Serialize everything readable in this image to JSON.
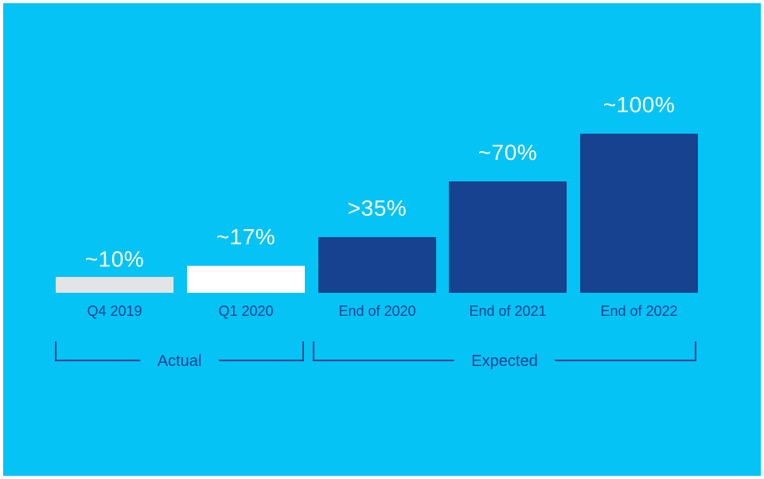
{
  "chart_data": {
    "type": "bar",
    "title": "",
    "xlabel": "",
    "ylabel": "",
    "categories": [
      "Q4 2019",
      "Q1 2020",
      "End of 2020",
      "End of 2021",
      "End of 2022"
    ],
    "values": [
      10,
      17,
      35,
      70,
      100
    ],
    "value_labels": [
      "~10%",
      "~17%",
      ">35%",
      "~70%",
      "~100%"
    ],
    "bar_colors": [
      "#e3e4e5",
      "#ffffff",
      "#17428f",
      "#17428f",
      "#17428f"
    ],
    "ylim": [
      0,
      100
    ],
    "grid": false,
    "legend": false,
    "annotations": [
      {
        "label": "Actual",
        "covers": [
          "Q4 2019",
          "Q1 2020"
        ]
      },
      {
        "label": "Expected",
        "covers": [
          "End of 2020",
          "End of 2021",
          "End of 2022"
        ]
      }
    ]
  },
  "brackets": {
    "actual_label": "Actual",
    "expected_label": "Expected"
  },
  "colors": {
    "background": "#05c3f5",
    "frame": "#ffffff",
    "bar_dark_blue": "#17428f",
    "bar_gray": "#e3e4e5",
    "bar_white": "#ffffff",
    "value_label_text": "#ffffff",
    "category_text": "#17428f",
    "bracket_line": "#17428f"
  }
}
